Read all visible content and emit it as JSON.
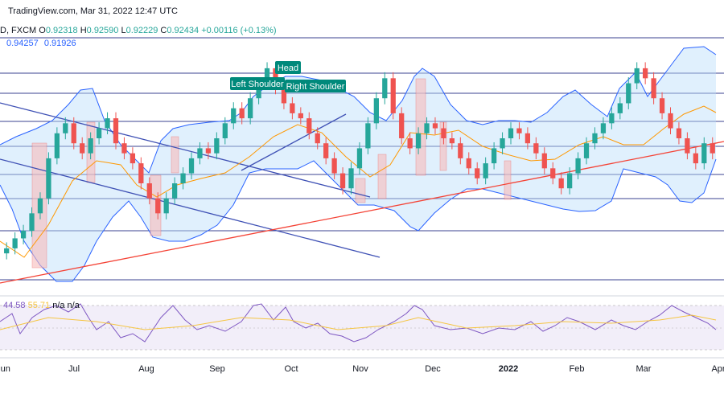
{
  "header": {
    "watermark": "TradingView.com, Mar 31, 2022 12:47 UTC",
    "symbol_suffix": "D, FXCM",
    "o_label": "O",
    "o_value": "0.92318",
    "h_label": "H",
    "h_value": "0.92590",
    "l_label": "L",
    "l_value": "0.92229",
    "c_label": "C",
    "c_value": "0.92434",
    "change": "+0.00116 (+0.13%)",
    "bb_upper": "0.94257",
    "bb_lower": "0.91926"
  },
  "rsi_header": {
    "rsi_value": "44.58",
    "rsi_ma": "55.71",
    "na": "n/a n/a"
  },
  "annotations": {
    "head": "Head",
    "left_shoulder": "Left Shoulder",
    "right_shoulder": "Right Shoulder"
  },
  "colors": {
    "bull": "#26a69a",
    "bear": "#ef5350",
    "bb_band": "#2962ff",
    "bb_fill": "#bbdefb",
    "ma": "#ff9800",
    "support": "#1a237e",
    "trend_red": "#f44336",
    "channel": "#3f51b5",
    "rsi": "#7e57c2",
    "rsi_ma": "#f5c542",
    "label_bg": "#00897b",
    "box": "#f8bbbb"
  },
  "chart_data": {
    "type": "candlestick",
    "x_ticks": [
      "Jun",
      "Jul",
      "Aug",
      "Sep",
      "Oct",
      "Nov",
      "Dec",
      "2022",
      "Feb",
      "Mar",
      "Apr"
    ],
    "series": [
      {
        "name": "price",
        "values": [
          0.905,
          0.907,
          0.9085,
          0.912,
          0.915,
          0.923,
          0.928,
          0.93,
          0.926,
          0.924,
          0.927,
          0.929,
          0.931,
          0.926,
          0.924,
          0.922,
          0.918,
          0.915,
          0.912,
          0.915,
          0.918,
          0.92,
          0.923,
          0.925,
          0.924,
          0.927,
          0.93,
          0.933,
          0.931,
          0.935,
          0.938,
          0.941,
          0.937,
          0.934,
          0.932,
          0.931,
          0.928,
          0.926,
          0.923,
          0.92,
          0.917,
          0.921,
          0.925,
          0.93,
          0.935,
          0.939,
          0.932,
          0.927,
          0.925,
          0.928,
          0.93,
          0.929,
          0.927,
          0.926,
          0.923,
          0.921,
          0.919,
          0.922,
          0.925,
          0.927,
          0.929,
          0.928,
          0.926,
          0.924,
          0.921,
          0.919,
          0.917,
          0.92,
          0.923,
          0.926,
          0.928,
          0.93,
          0.932,
          0.934,
          0.938,
          0.941,
          0.939,
          0.935,
          0.932,
          0.929,
          0.927,
          0.924,
          0.922,
          0.926,
          0.924
        ]
      }
    ]
  }
}
